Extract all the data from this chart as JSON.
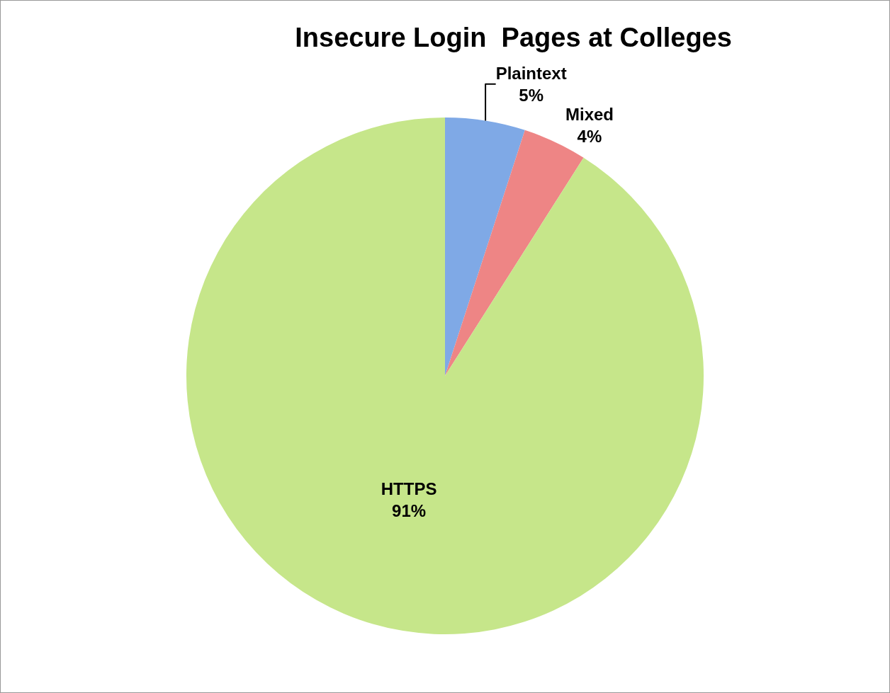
{
  "chart_data": {
    "type": "pie",
    "title": "Insecure Login  Pages at Colleges",
    "categories": [
      "Plaintext",
      "Mixed",
      "HTTPS"
    ],
    "values": [
      5,
      4,
      91
    ],
    "value_labels": [
      "5%",
      "4%",
      "91%"
    ],
    "colors": [
      "#7fa9e6",
      "#ee8585",
      "#c6e68a"
    ],
    "legend": false
  }
}
